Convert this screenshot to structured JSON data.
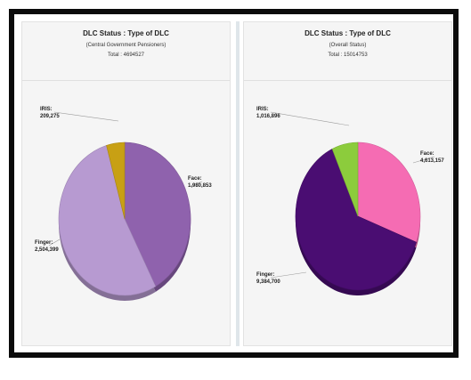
{
  "panels": [
    {
      "title": "DLC Status : Type of DLC",
      "subtitle": "(Central Government Pensioners)",
      "total": "Total : 4694527"
    },
    {
      "title": "DLC Status : Type of DLC",
      "subtitle": "(Overall Status)",
      "total": "Total : 15014753"
    }
  ],
  "chart_data": [
    {
      "type": "pie",
      "title": "DLC Status : Type of DLC",
      "subtitle": "(Central Government Pensioners)",
      "total": 4694527,
      "slices": [
        {
          "label": "IRIS:",
          "value": 209275,
          "display": "209,275",
          "color": "#c8a014"
        },
        {
          "label": "Face:",
          "value": 1980853,
          "display": "1,980,853",
          "color": "#8f62ad"
        },
        {
          "label": "Finger:",
          "value": 2504399,
          "display": "2,504,399",
          "color": "#b79ad1"
        }
      ]
    },
    {
      "type": "pie",
      "title": "DLC Status : Type of DLC",
      "subtitle": "(Overall Status)",
      "total": 15014753,
      "slices": [
        {
          "label": "IRIS:",
          "value": 1016896,
          "display": "1,016,896",
          "color": "#8ccc3c"
        },
        {
          "label": "Face:",
          "value": 4613157,
          "display": "4,613,157",
          "color": "#f56cb3"
        },
        {
          "label": "Finger:",
          "value": 9384700,
          "display": "9,384,700",
          "color": "#4a0d72"
        }
      ]
    }
  ]
}
